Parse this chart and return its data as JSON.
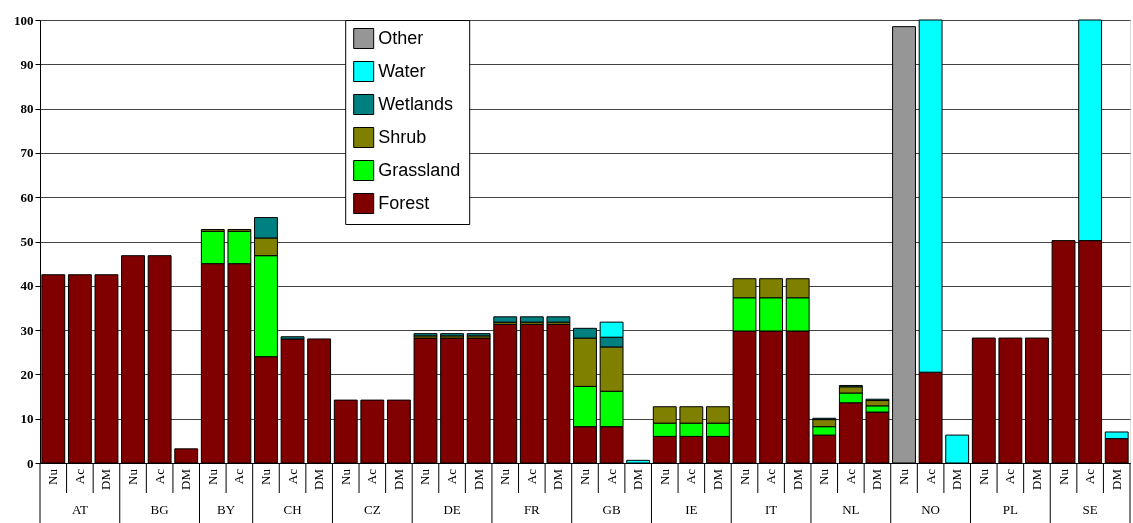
{
  "chart_data": {
    "type": "bar",
    "stacked": true,
    "categories": [
      "Nu",
      "Ac",
      "DM",
      "Nu",
      "Ac",
      "DM",
      "Nu",
      "Ac",
      "Nu",
      "Ac",
      "DM",
      "Nu",
      "Ac",
      "DM",
      "Nu",
      "Ac",
      "DM",
      "Nu",
      "Ac",
      "DM",
      "Nu",
      "Ac",
      "DM",
      "Nu",
      "Ac",
      "DM",
      "Nu",
      "Ac",
      "DM",
      "Nu",
      "Ac",
      "DM",
      "Nu",
      "Ac",
      "DM",
      "Nu",
      "Ac",
      "DM",
      "Nu",
      "Ac",
      "DM"
    ],
    "annotations": [
      "AT",
      "BG",
      "BY",
      "CH",
      "CZ",
      "DE",
      "FR",
      "GB",
      "IE",
      "IT",
      "NL",
      "NO",
      "PL",
      "SE"
    ],
    "series": [
      {
        "name": "Forest",
        "color": "#800000",
        "values": [
          42.5,
          42.5,
          42.5,
          46.8,
          46.8,
          3.2,
          45,
          45,
          24,
          28,
          28,
          14.2,
          14.2,
          14.2,
          28.2,
          28.2,
          28.2,
          31.3,
          31.3,
          31.3,
          8.2,
          8.2,
          null,
          6,
          6,
          6,
          29.8,
          29.8,
          29.8,
          6.3,
          13.6,
          11.5,
          null,
          20.5,
          null,
          28.2,
          28.2,
          28.2,
          50.2,
          50.2,
          5.5
        ]
      },
      {
        "name": "Grassland",
        "color": "#00ff00",
        "values": [
          null,
          null,
          null,
          null,
          null,
          null,
          7.3,
          7.3,
          22.8,
          null,
          null,
          null,
          null,
          null,
          null,
          null,
          null,
          null,
          null,
          null,
          9.1,
          8,
          null,
          3,
          3,
          3,
          7.5,
          7.5,
          7.5,
          1.9,
          2.2,
          1.4,
          null,
          null,
          null,
          null,
          null,
          null,
          null,
          null,
          null
        ]
      },
      {
        "name": "Shrub",
        "color": "#808000",
        "values": [
          null,
          null,
          null,
          null,
          null,
          null,
          0.4,
          0.4,
          4,
          null,
          null,
          null,
          null,
          null,
          0.5,
          0.5,
          0.5,
          0.5,
          0.5,
          0.5,
          10.9,
          10,
          null,
          3.7,
          3.7,
          3.7,
          4.3,
          4.3,
          4.3,
          1.6,
          1.4,
          1.2,
          null,
          null,
          null,
          null,
          null,
          null,
          null,
          null,
          null
        ]
      },
      {
        "name": "Wetlands",
        "color": "#008080",
        "values": [
          null,
          null,
          null,
          null,
          null,
          null,
          null,
          null,
          4.6,
          0.5,
          null,
          null,
          null,
          null,
          0.5,
          0.5,
          0.5,
          1.2,
          1.2,
          1.2,
          2.2,
          2.2,
          null,
          null,
          null,
          null,
          null,
          null,
          null,
          0.3,
          0.3,
          0.3,
          null,
          null,
          null,
          null,
          null,
          null,
          null,
          null,
          null
        ]
      },
      {
        "name": "Water",
        "color": "#00ffff",
        "values": [
          null,
          null,
          null,
          null,
          null,
          null,
          null,
          null,
          null,
          null,
          null,
          null,
          null,
          null,
          null,
          null,
          null,
          null,
          null,
          null,
          null,
          3.4,
          0.6,
          null,
          null,
          null,
          null,
          null,
          null,
          null,
          null,
          null,
          null,
          79.5,
          6.3,
          null,
          null,
          null,
          null,
          49.8,
          1.5
        ]
      },
      {
        "name": "Other",
        "color": "#969696",
        "values": [
          null,
          null,
          null,
          null,
          null,
          null,
          null,
          null,
          null,
          null,
          null,
          null,
          null,
          null,
          null,
          null,
          null,
          null,
          null,
          null,
          null,
          null,
          null,
          null,
          null,
          null,
          null,
          null,
          null,
          null,
          null,
          null,
          98.5,
          null,
          null,
          null,
          null,
          null,
          null,
          null,
          null
        ]
      }
    ],
    "ylim": [
      0,
      100
    ],
    "yticks": [
      0,
      10,
      20,
      30,
      40,
      50,
      60,
      70,
      80,
      90,
      100
    ],
    "grid": "y",
    "legend": "top"
  }
}
